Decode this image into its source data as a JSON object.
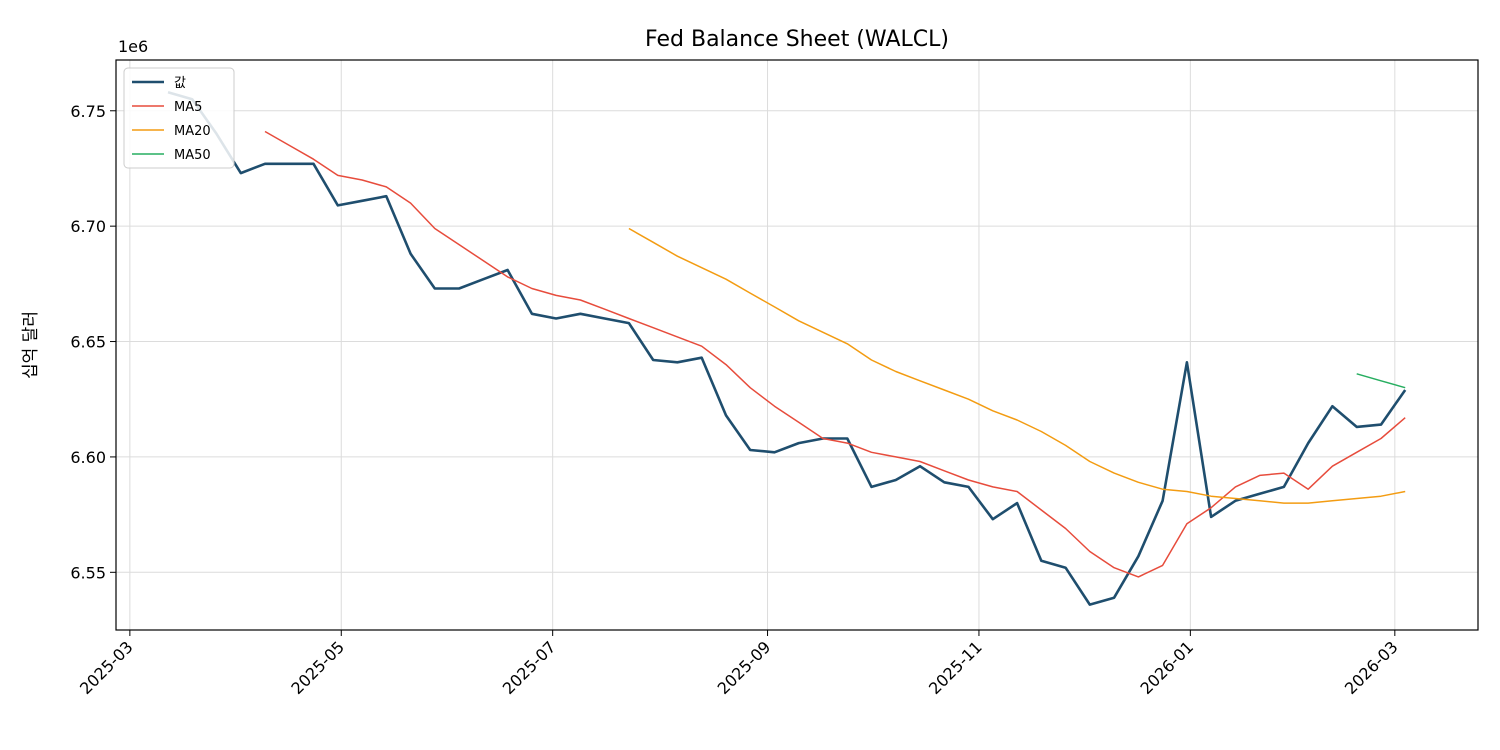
{
  "chart_data": {
    "type": "line",
    "title": "Fed Balance Sheet (WALCL)",
    "xlabel": "",
    "ylabel": "십억 달러",
    "y_offset_label": "1e6",
    "y_multiplier": 1000000,
    "ylim": [
      6.525,
      6.772
    ],
    "y_ticks": [
      6.55,
      6.6,
      6.65,
      6.7,
      6.75
    ],
    "y_tick_labels": [
      "6.55",
      "6.60",
      "6.65",
      "6.70",
      "6.75"
    ],
    "xlim": [
      "2025-02-25",
      "2026-03-25"
    ],
    "x_ticks": [
      "2025-03-01",
      "2025-05-01",
      "2025-07-01",
      "2025-09-01",
      "2025-11-01",
      "2026-01-01",
      "2026-03-01"
    ],
    "x_tick_labels": [
      "2025-03",
      "2025-05",
      "2025-07",
      "2025-09",
      "2025-11",
      "2026-01",
      "2026-03"
    ],
    "grid": true,
    "legend_position": "top-left",
    "colors": {
      "값": "#1f4e6e",
      "MA5": "#e74c3c",
      "MA20": "#f39c12",
      "MA50": "#27ae60"
    },
    "series": [
      {
        "name": "값",
        "x": [
          "2025-03-12",
          "2025-03-19",
          "2025-03-26",
          "2025-04-02",
          "2025-04-09",
          "2025-04-16",
          "2025-04-23",
          "2025-04-30",
          "2025-05-07",
          "2025-05-14",
          "2025-05-21",
          "2025-05-28",
          "2025-06-04",
          "2025-06-11",
          "2025-06-18",
          "2025-06-25",
          "2025-07-02",
          "2025-07-09",
          "2025-07-16",
          "2025-07-23",
          "2025-07-30",
          "2025-08-06",
          "2025-08-13",
          "2025-08-20",
          "2025-08-27",
          "2025-09-03",
          "2025-09-10",
          "2025-09-17",
          "2025-09-24",
          "2025-10-01",
          "2025-10-08",
          "2025-10-15",
          "2025-10-22",
          "2025-10-29",
          "2025-11-05",
          "2025-11-12",
          "2025-11-19",
          "2025-11-26",
          "2025-12-03",
          "2025-12-10",
          "2025-12-17",
          "2025-12-24",
          "2025-12-31",
          "2026-01-07",
          "2026-01-14",
          "2026-01-21",
          "2026-01-28",
          "2026-02-04",
          "2026-02-11",
          "2026-02-18",
          "2026-02-25",
          "2026-03-04"
        ],
        "values": [
          6.758,
          6.755,
          6.74,
          6.723,
          6.727,
          6.727,
          6.727,
          6.709,
          6.711,
          6.713,
          6.688,
          6.673,
          6.673,
          6.677,
          6.681,
          6.662,
          6.66,
          6.662,
          6.66,
          6.658,
          6.642,
          6.641,
          6.643,
          6.618,
          6.603,
          6.602,
          6.606,
          6.608,
          6.608,
          6.587,
          6.59,
          6.596,
          6.589,
          6.587,
          6.573,
          6.58,
          6.555,
          6.552,
          6.536,
          6.539,
          6.557,
          6.581,
          6.641,
          6.574,
          6.581,
          6.584,
          6.587,
          6.606,
          6.622,
          6.613,
          6.614,
          6.629
        ]
      },
      {
        "name": "MA5",
        "x": [
          "2025-04-09",
          "2025-04-16",
          "2025-04-23",
          "2025-04-30",
          "2025-05-07",
          "2025-05-14",
          "2025-05-21",
          "2025-05-28",
          "2025-06-04",
          "2025-06-11",
          "2025-06-18",
          "2025-06-25",
          "2025-07-02",
          "2025-07-09",
          "2025-07-16",
          "2025-07-23",
          "2025-07-30",
          "2025-08-06",
          "2025-08-13",
          "2025-08-20",
          "2025-08-27",
          "2025-09-03",
          "2025-09-10",
          "2025-09-17",
          "2025-09-24",
          "2025-10-01",
          "2025-10-08",
          "2025-10-15",
          "2025-10-22",
          "2025-10-29",
          "2025-11-05",
          "2025-11-12",
          "2025-11-19",
          "2025-11-26",
          "2025-12-03",
          "2025-12-10",
          "2025-12-17",
          "2025-12-24",
          "2025-12-31",
          "2026-01-07",
          "2026-01-14",
          "2026-01-21",
          "2026-01-28",
          "2026-02-04",
          "2026-02-11",
          "2026-02-18",
          "2026-02-25",
          "2026-03-04"
        ],
        "values": [
          6.741,
          6.735,
          6.729,
          6.722,
          6.72,
          6.717,
          6.71,
          6.699,
          6.692,
          6.685,
          6.678,
          6.673,
          6.67,
          6.668,
          6.664,
          6.66,
          6.656,
          6.652,
          6.648,
          6.64,
          6.63,
          6.622,
          6.615,
          6.608,
          6.606,
          6.602,
          6.6,
          6.598,
          6.594,
          6.59,
          6.587,
          6.585,
          6.577,
          6.569,
          6.559,
          6.552,
          6.548,
          6.553,
          6.571,
          6.578,
          6.587,
          6.592,
          6.593,
          6.586,
          6.596,
          6.602,
          6.608,
          6.617
        ]
      },
      {
        "name": "MA20",
        "x": [
          "2025-07-23",
          "2025-07-30",
          "2025-08-06",
          "2025-08-13",
          "2025-08-20",
          "2025-08-27",
          "2025-09-03",
          "2025-09-10",
          "2025-09-17",
          "2025-09-24",
          "2025-10-01",
          "2025-10-08",
          "2025-10-15",
          "2025-10-22",
          "2025-10-29",
          "2025-11-05",
          "2025-11-12",
          "2025-11-19",
          "2025-11-26",
          "2025-12-03",
          "2025-12-10",
          "2025-12-17",
          "2025-12-24",
          "2025-12-31",
          "2026-01-07",
          "2026-01-14",
          "2026-01-21",
          "2026-01-28",
          "2026-02-04",
          "2026-02-11",
          "2026-02-18",
          "2026-02-25",
          "2026-03-04"
        ],
        "values": [
          6.699,
          6.693,
          6.687,
          6.682,
          6.677,
          6.671,
          6.665,
          6.659,
          6.654,
          6.649,
          6.642,
          6.637,
          6.633,
          6.629,
          6.625,
          6.62,
          6.616,
          6.611,
          6.605,
          6.598,
          6.593,
          6.589,
          6.586,
          6.585,
          6.583,
          6.582,
          6.581,
          6.58,
          6.58,
          6.581,
          6.582,
          6.583,
          6.585
        ]
      },
      {
        "name": "MA50",
        "x": [
          "2026-02-18",
          "2026-02-25",
          "2026-03-04"
        ],
        "values": [
          6.636,
          6.633,
          6.63
        ]
      }
    ]
  }
}
